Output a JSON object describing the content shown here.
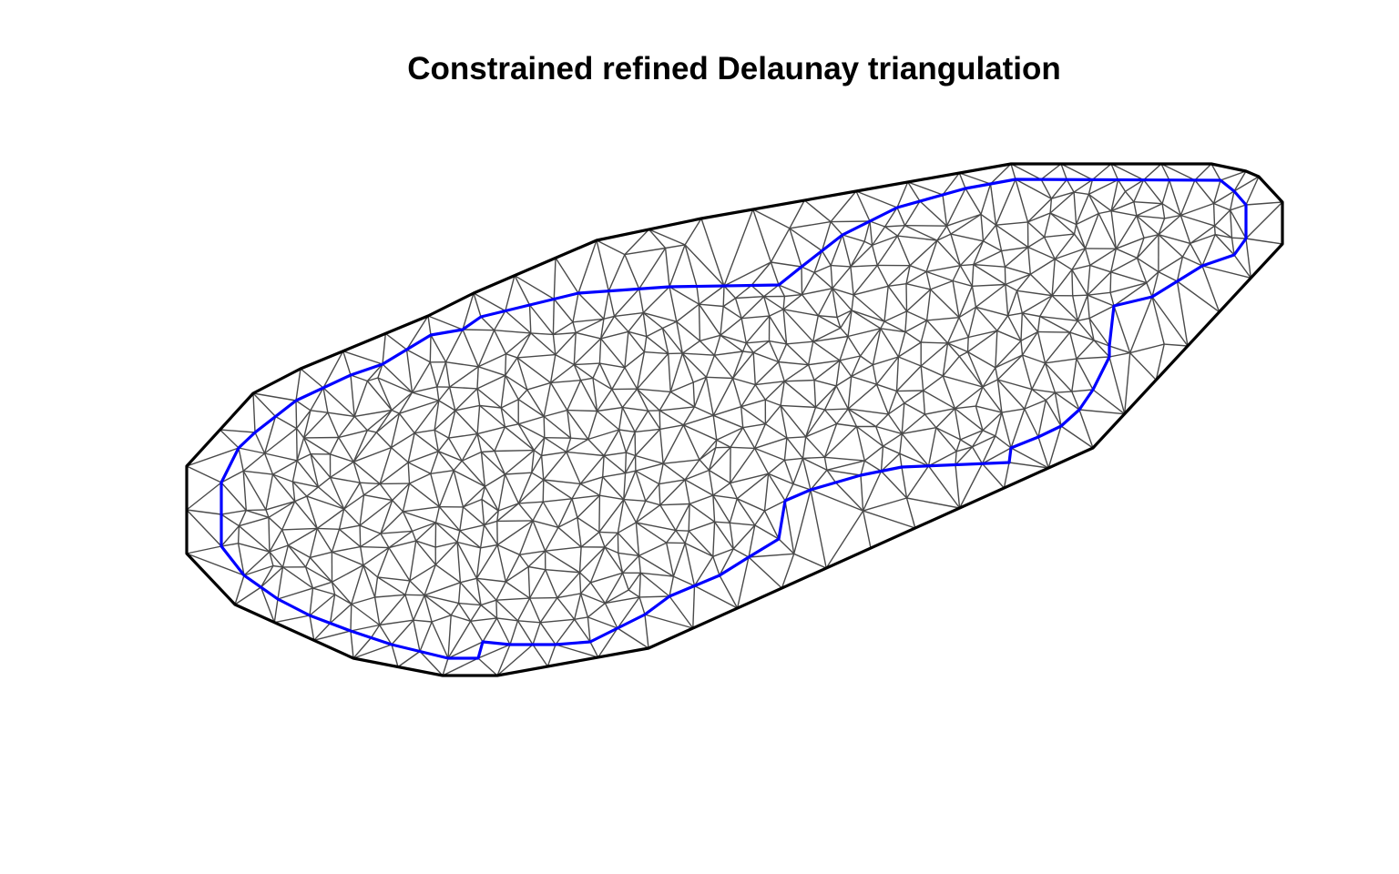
{
  "title": "Constrained refined Delaunay triangulation",
  "colors": {
    "background": "#ffffff",
    "outer_boundary": "#000000",
    "inner_constraint": "#0000ff",
    "mesh_edges": "#4a4a4a"
  },
  "chart_data": {
    "type": "diagram",
    "title": "Constrained refined Delaunay triangulation",
    "xlabel": "",
    "ylabel": "",
    "grid": false,
    "legend": "none"
  }
}
